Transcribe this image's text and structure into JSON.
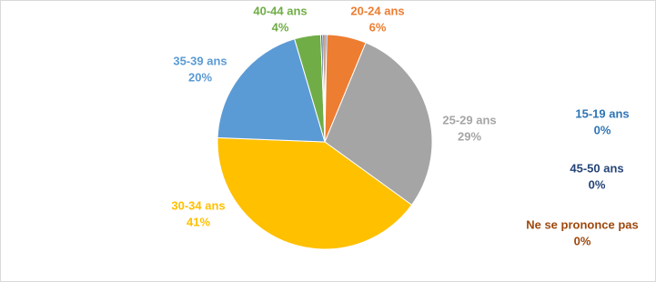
{
  "chart_data": {
    "type": "pie",
    "categories": [
      "15-19 ans",
      "20-24 ans",
      "25-29 ans",
      "30-34 ans",
      "35-39 ans",
      "40-44 ans",
      "45-50 ans",
      "Ne se prononce pas"
    ],
    "values": [
      0.3,
      6,
      29,
      41,
      20,
      4,
      0.3,
      0.3
    ],
    "value_labels": [
      "0%",
      "6%",
      "29%",
      "41%",
      "20%",
      "4%",
      "0%",
      "0%"
    ],
    "colors": [
      "#4472c4",
      "#ed7d31",
      "#a5a5a5",
      "#ffc000",
      "#5b9bd5",
      "#70ad47",
      "#264478",
      "#9e480e"
    ]
  }
}
